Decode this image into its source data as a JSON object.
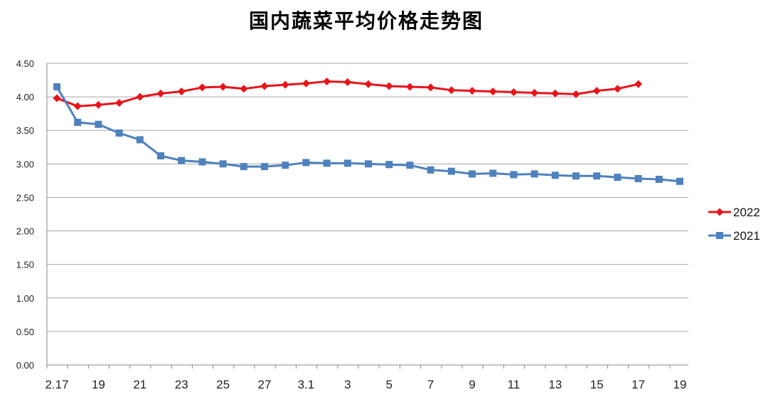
{
  "chart_data": {
    "type": "line",
    "title": "国内蔬菜平均价格走势图",
    "xlabel": "",
    "ylabel": "",
    "ylim": [
      0,
      4.5
    ],
    "y_ticks": [
      "0.00",
      "0.50",
      "1.00",
      "1.50",
      "2.00",
      "2.50",
      "3.00",
      "3.50",
      "4.00",
      "4.50"
    ],
    "x_tick_labels": [
      "2.17",
      "19",
      "21",
      "23",
      "25",
      "27",
      "3.1",
      "3",
      "5",
      "7",
      "9",
      "11",
      "13",
      "15",
      "17",
      "19"
    ],
    "grid": true,
    "legend_position": "right",
    "series": [
      {
        "name": "2022",
        "color": "#e8141a",
        "marker": "diamond",
        "values": [
          3.98,
          3.86,
          3.88,
          3.91,
          4.0,
          4.05,
          4.08,
          4.14,
          4.15,
          4.12,
          4.16,
          4.18,
          4.2,
          4.23,
          4.22,
          4.19,
          4.16,
          4.15,
          4.14,
          4.1,
          4.09,
          4.08,
          4.07,
          4.06,
          4.05,
          4.04,
          4.09,
          4.12,
          4.19
        ]
      },
      {
        "name": "2021",
        "color": "#4f81bd",
        "marker": "square",
        "values": [
          4.15,
          3.62,
          3.59,
          3.46,
          3.36,
          3.12,
          3.05,
          3.03,
          3.0,
          2.96,
          2.96,
          2.98,
          3.02,
          3.01,
          3.01,
          3.0,
          2.99,
          2.98,
          2.91,
          2.89,
          2.85,
          2.86,
          2.84,
          2.85,
          2.83,
          2.82,
          2.82,
          2.8,
          2.78,
          2.77,
          2.74
        ]
      }
    ]
  }
}
